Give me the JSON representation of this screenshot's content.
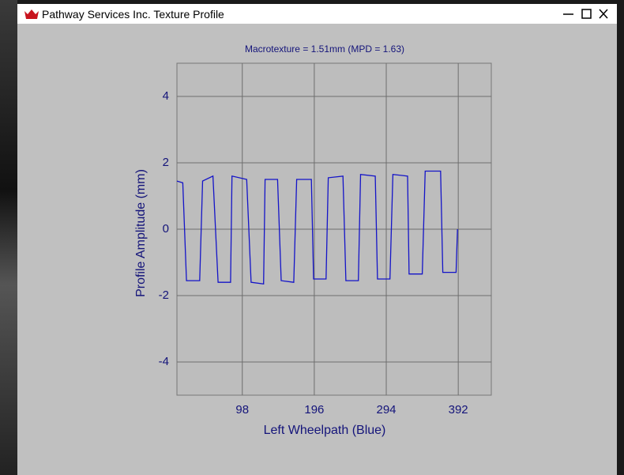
{
  "window": {
    "title": "Pathway Services Inc. Texture Profile"
  },
  "chart_data": {
    "type": "line",
    "title": "Macrotexture = 1.51mm (MPD = 1.63)",
    "x_label": "Left Wheelpath (Blue)",
    "y_label": "Profile Amplitude (mm)",
    "x": [
      9,
      17,
      22,
      40,
      44,
      58,
      65,
      82,
      84,
      104,
      110,
      127,
      129,
      146,
      151,
      168,
      172,
      192,
      195,
      212,
      215,
      235,
      239,
      256,
      259,
      279,
      282,
      299,
      303,
      323,
      325,
      343,
      347,
      368,
      371,
      389,
      391
    ],
    "values": [
      1.45,
      1.4,
      -1.55,
      -1.55,
      1.45,
      1.6,
      -1.6,
      -1.6,
      1.6,
      1.5,
      -1.6,
      -1.65,
      1.5,
      1.5,
      -1.55,
      -1.6,
      1.5,
      1.5,
      -1.5,
      -1.5,
      1.55,
      1.6,
      -1.55,
      -1.55,
      1.65,
      1.6,
      -1.5,
      -1.5,
      1.65,
      1.6,
      -1.35,
      -1.35,
      1.75,
      1.75,
      -1.3,
      -1.3,
      0
    ],
    "color": "#1414c8",
    "xlim": [
      9,
      437
    ],
    "xticks": [
      98,
      196,
      294,
      392
    ],
    "ylim": [
      -5,
      5
    ],
    "yticks": [
      -4,
      -2,
      0,
      2,
      4
    ],
    "grid": true
  }
}
